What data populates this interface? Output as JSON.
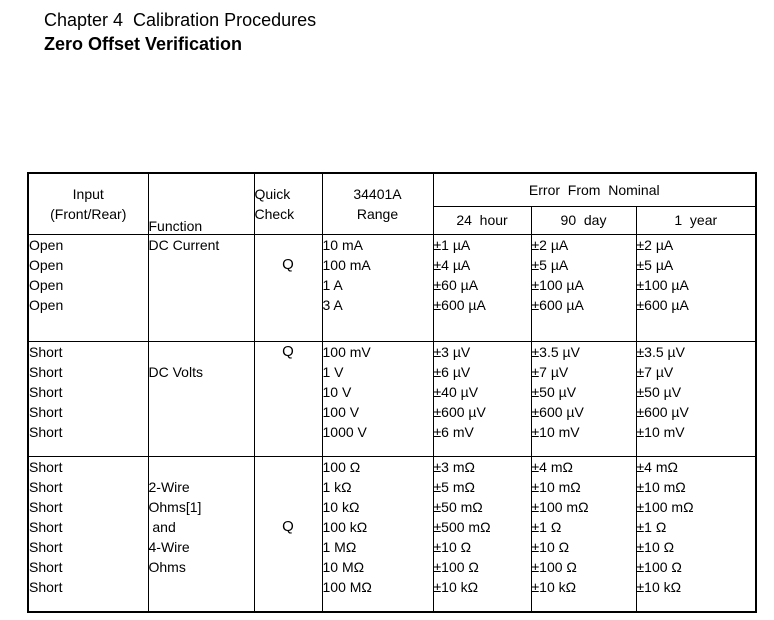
{
  "page": {
    "chapter_line": "Chapter 4  Calibration Procedures",
    "section_line": "Zero Offset Verification"
  },
  "table": {
    "header": {
      "input_lines": [
        "Input",
        "(Front/Rear)"
      ],
      "function_label": "Function",
      "quick_lines": [
        "Quick",
        "Check"
      ],
      "range_lines": [
        "34401A",
        "Range"
      ],
      "error_group_label": "Error  From  Nominal",
      "period_cols": [
        "24  hour",
        "90  day",
        "1  year"
      ]
    },
    "blocks": [
      {
        "input": [
          "Open",
          "Open",
          "Open",
          "Open"
        ],
        "function": [
          "DC Current",
          "",
          "",
          ""
        ],
        "quick_check": [
          "",
          "Q",
          "",
          ""
        ],
        "range": [
          "10 mA",
          "100 mA",
          "1 A",
          "3 A"
        ],
        "error_24hour": [
          "±1 µA",
          "±4 µA",
          "±60 µA",
          "±600 µA"
        ],
        "error_90day": [
          "±2 µA",
          "±5 µA",
          "±100 µA",
          "±600 µA"
        ],
        "error_1year": [
          "±2 µA",
          "±5 µA",
          "±100 µA",
          "±600 µA"
        ]
      },
      {
        "input": [
          "Short",
          "Short",
          "Short",
          "Short",
          "Short"
        ],
        "function": [
          "",
          "DC Volts",
          "",
          "",
          ""
        ],
        "quick_check": [
          "Q",
          "",
          "",
          "",
          ""
        ],
        "range": [
          "100 mV",
          "1 V",
          "10 V",
          "100 V",
          "1000 V"
        ],
        "error_24hour": [
          "±3 µV",
          "±6 µV",
          "±40 µV",
          "±600 µV",
          "±6 mV"
        ],
        "error_90day": [
          "±3.5 µV",
          "±7 µV",
          "±50 µV",
          "±600 µV",
          "±10 mV"
        ],
        "error_1year": [
          "±3.5 µV",
          "±7 µV",
          "±50 µV",
          "±600 µV",
          "±10 mV"
        ]
      },
      {
        "input": [
          "Short",
          "Short",
          "Short",
          "Short",
          "Short",
          "Short",
          "Short"
        ],
        "function": [
          "",
          "2-Wire",
          "Ohms[1]",
          " and",
          "4-Wire",
          "Ohms",
          ""
        ],
        "quick_check": [
          "",
          "",
          "",
          "Q",
          "",
          "",
          ""
        ],
        "range": [
          "100 Ω",
          "1 kΩ",
          "10 kΩ",
          "100 kΩ",
          "1 MΩ",
          "10 MΩ",
          "100 MΩ"
        ],
        "error_24hour": [
          "±3 mΩ",
          "±5 mΩ",
          "±50 mΩ",
          "±500 mΩ",
          "±10 Ω",
          "±100 Ω",
          "±10 kΩ"
        ],
        "error_90day": [
          "±4 mΩ",
          "±10 mΩ",
          "±100 mΩ",
          "±1 Ω",
          "±10 Ω",
          "±100 Ω",
          "±10 kΩ"
        ],
        "error_1year": [
          "±4 mΩ",
          "±10 mΩ",
          "±100 mΩ",
          "±1 Ω",
          "±10 Ω",
          "±100 Ω",
          "±10 kΩ"
        ]
      }
    ]
  }
}
